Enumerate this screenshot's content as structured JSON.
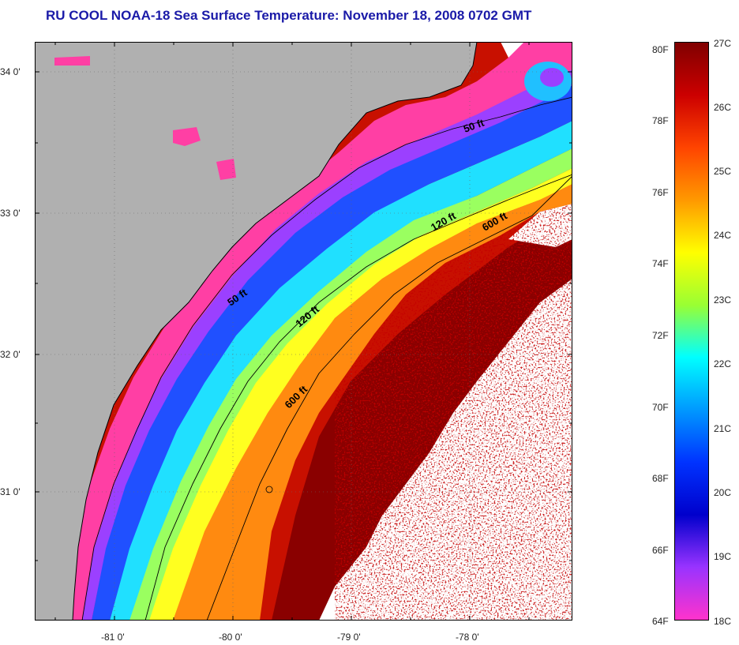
{
  "title": "RU COOL  NOAA-18  Sea Surface Temperature:  November 18, 2008 0702 GMT",
  "lat_ticks": [
    "34 0'",
    "33 0'",
    "32 0'",
    "31 0'"
  ],
  "lon_ticks": [
    "-81 0'",
    "-80 0'",
    "-79 0'",
    "-78 0'"
  ],
  "contours": [
    {
      "label": "50 ft"
    },
    {
      "label": "50 ft"
    },
    {
      "label": "120 ft"
    },
    {
      "label": "120 ft"
    },
    {
      "label": "600 ft"
    },
    {
      "label": "600 ft"
    }
  ],
  "colorbar": {
    "f_labels": [
      "80F",
      "78F",
      "76F",
      "74F",
      "72F",
      "70F",
      "68F",
      "66F",
      "64F"
    ],
    "c_labels": [
      "27C",
      "26C",
      "25C",
      "24C",
      "23C",
      "22C",
      "21C",
      "20C",
      "19C",
      "18C"
    ],
    "colors": [
      "#800000",
      "#cc0000",
      "#ff4400",
      "#ff9900",
      "#ffff00",
      "#99ff33",
      "#00ffff",
      "#0099ff",
      "#0033ff",
      "#0000cc",
      "#9933ff",
      "#ff33cc"
    ]
  },
  "map_colors": {
    "land": "#b0b0b0",
    "cloud": "#ffffff",
    "coast_pink": "#ff3fa4",
    "purple": "#9b40ff",
    "blue": "#2050ff",
    "cyan": "#20e0ff",
    "green": "#a0ff60",
    "yellow": "#ffff20",
    "orange": "#ff9a10",
    "red": "#e01000",
    "darkred": "#8a0000"
  }
}
